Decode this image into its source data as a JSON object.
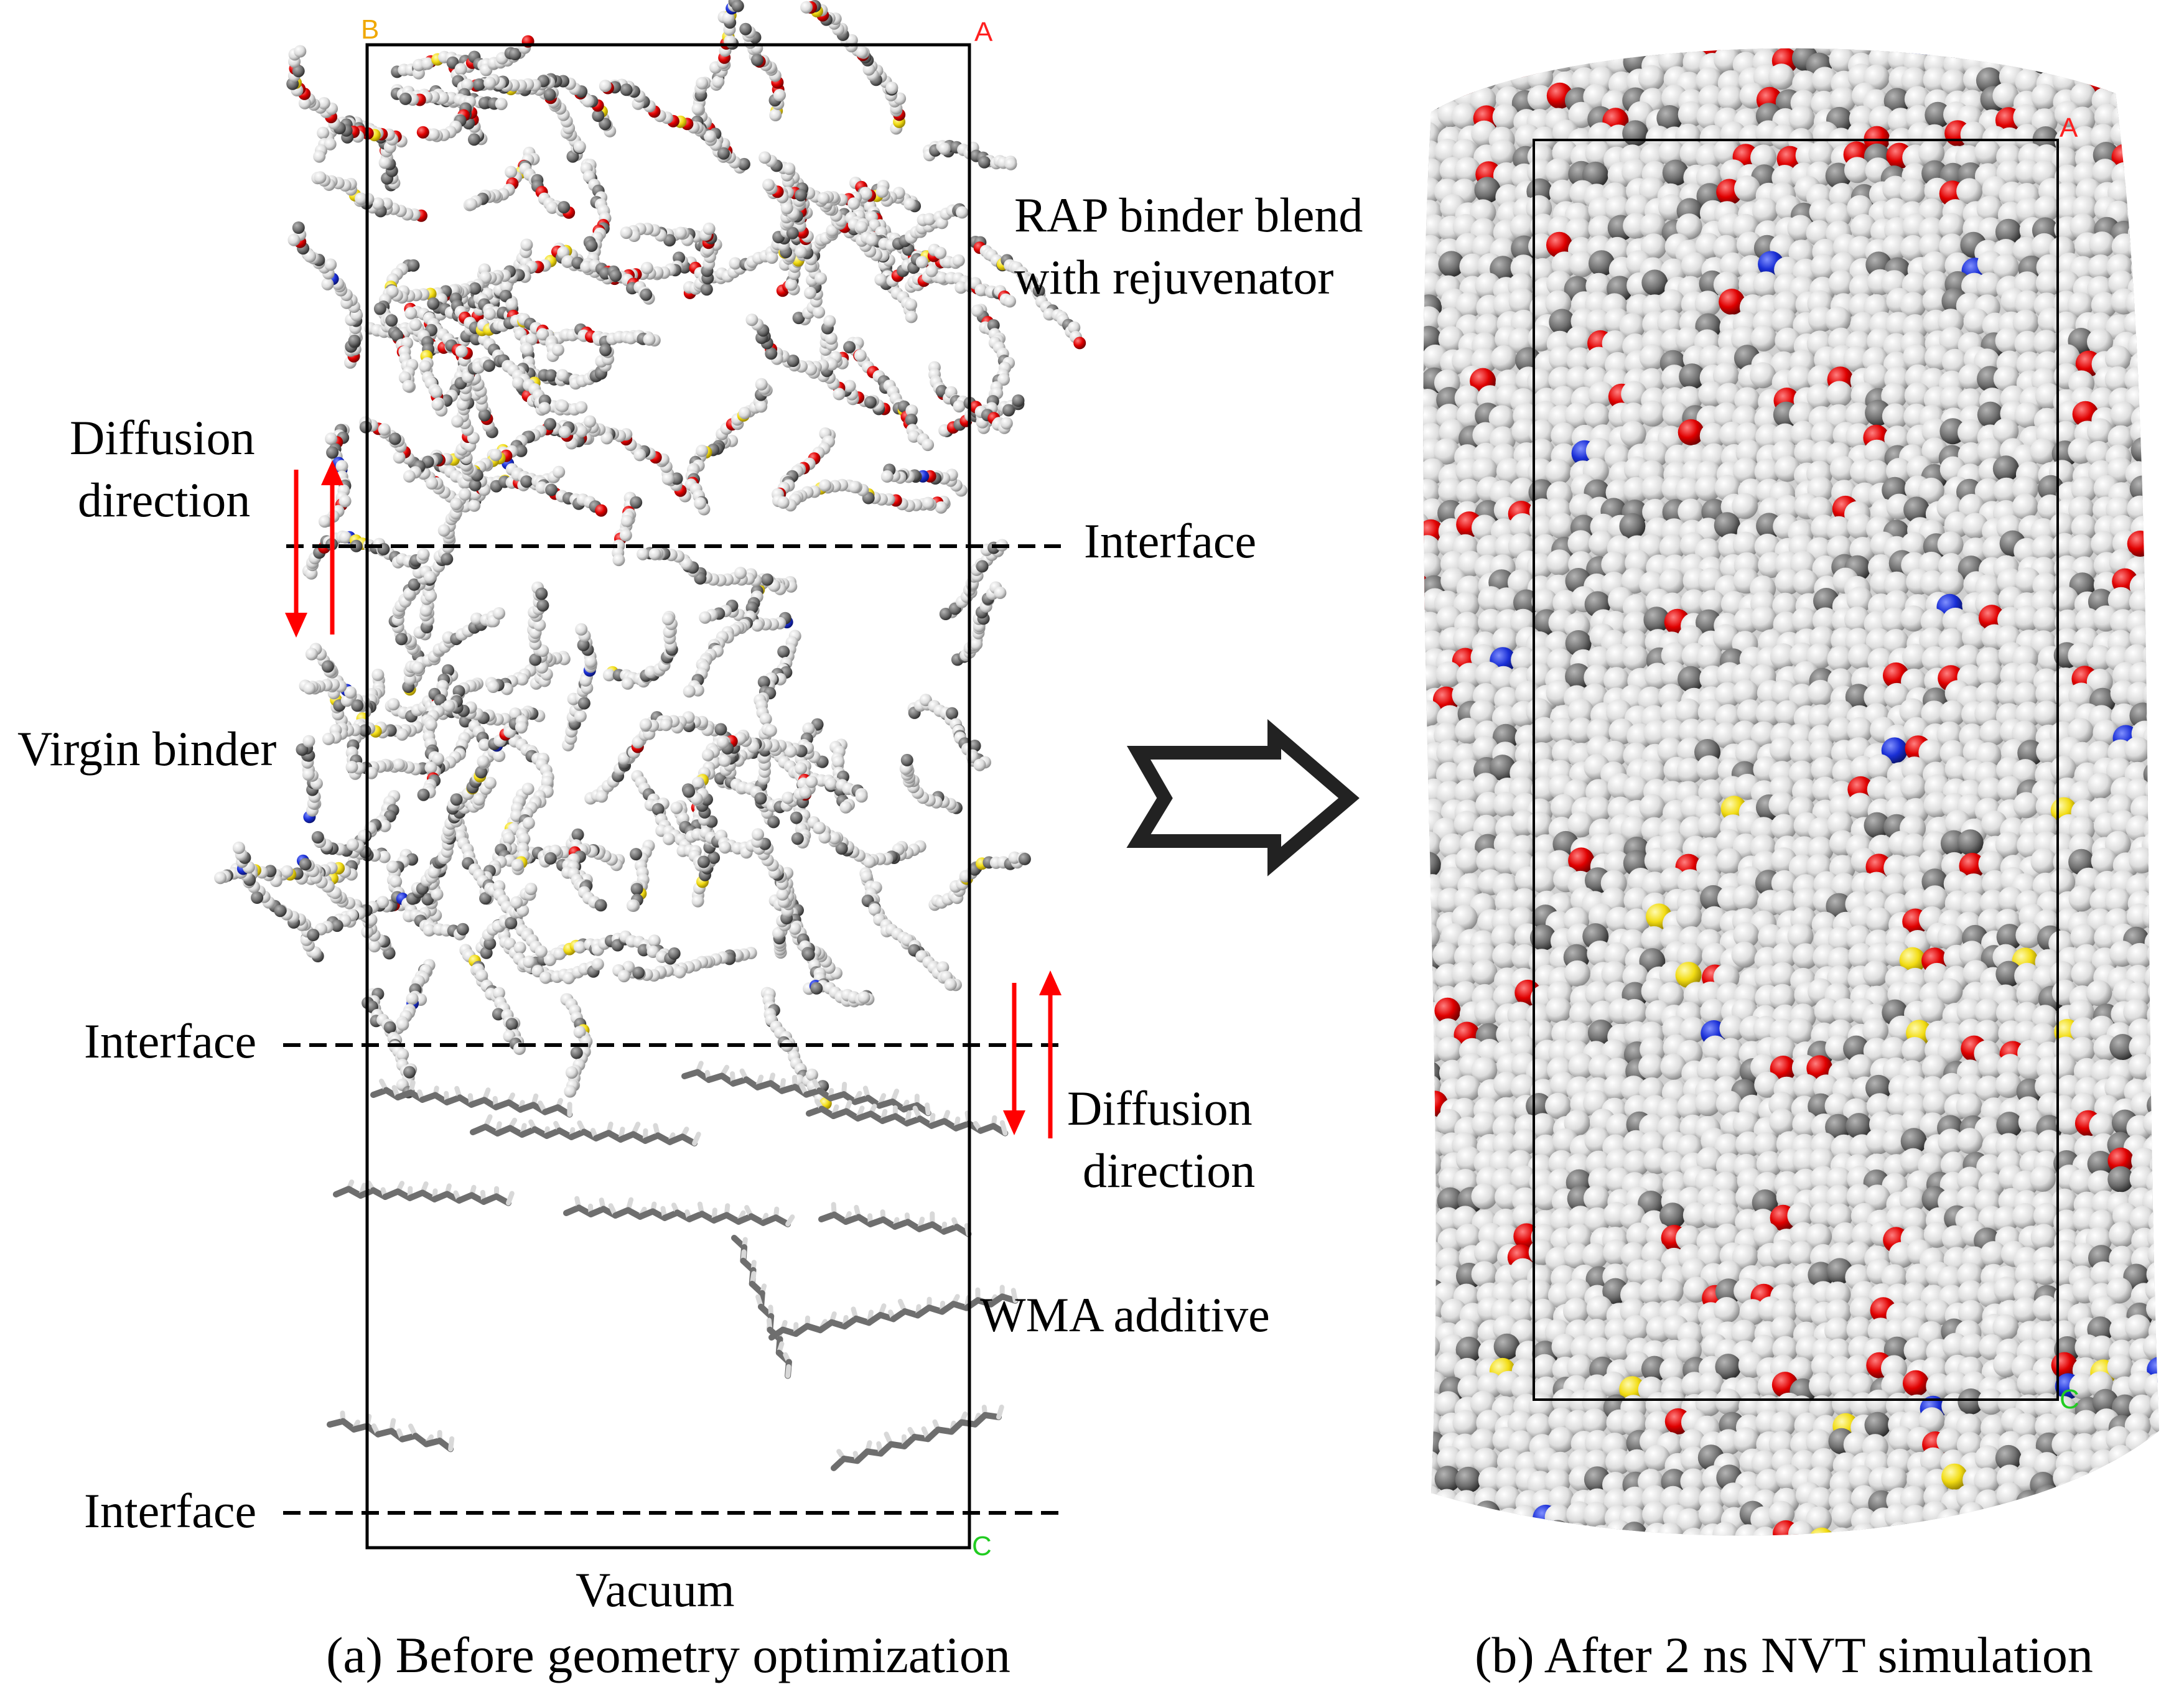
{
  "panel_a": {
    "caption": "(a) Before geometry optimization",
    "axis_labels": {
      "b": "B",
      "a": "A",
      "c": "C"
    },
    "layers": {
      "rap": [
        "RAP binder blend",
        "with rejuvenator"
      ],
      "virgin": "Virgin binder",
      "wma": "WMA additive",
      "vacuum": "Vacuum"
    },
    "interface_label": "Interface",
    "diffusion_label": [
      "Diffusion",
      "direction"
    ]
  },
  "panel_b": {
    "caption": "(b) After 2 ns NVT simulation",
    "axis_labels": {
      "a": "A",
      "c": "C"
    }
  },
  "colors": {
    "frame": "#000000",
    "dashed": "#000000",
    "diffusion_arrow": "#ff0000",
    "hydrogen_atom": "#e8e8e8",
    "carbon_atom": "#6e6e6e",
    "oxygen_atom": "#e00000",
    "sulfur_atom": "#f2dc14",
    "nitrogen_atom": "#1a2fd6",
    "axis_b": "#f0a800",
    "axis_a": "#ff2020",
    "axis_c": "#22cc22"
  }
}
